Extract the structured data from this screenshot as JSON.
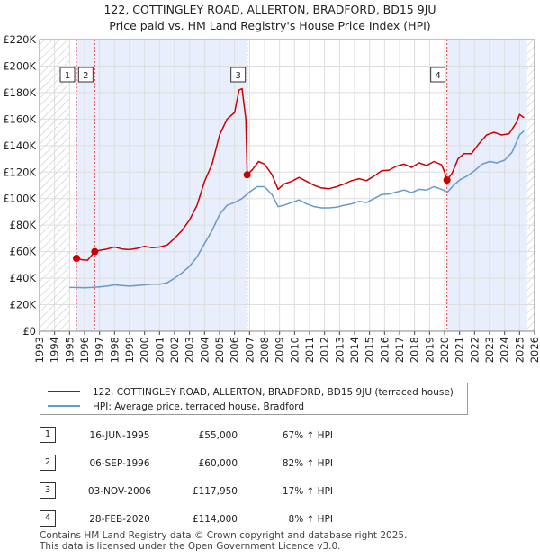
{
  "header": {
    "title_line1": "122, COTTINGLEY ROAD, ALLERTON, BRADFORD, BD15 9JU",
    "title_line2": "Price paid vs. HM Land Registry's House Price Index (HPI)"
  },
  "chart_data": {
    "type": "line",
    "title": "122, COTTINGLEY ROAD, ALLERTON, BRADFORD, BD15 9JU — Price paid vs. HM Land Registry's House Price Index (HPI)",
    "xlabel": "",
    "ylabel": "",
    "xlim": [
      1993,
      2026
    ],
    "ylim": [
      0,
      220000
    ],
    "x_ticks": [
      1993,
      1994,
      1995,
      1996,
      1997,
      1998,
      1999,
      2000,
      2001,
      2002,
      2003,
      2004,
      2005,
      2006,
      2007,
      2008,
      2009,
      2010,
      2011,
      2012,
      2013,
      2014,
      2015,
      2016,
      2017,
      2018,
      2019,
      2020,
      2021,
      2022,
      2023,
      2024,
      2025,
      2026
    ],
    "y_ticks": [
      0,
      20000,
      40000,
      60000,
      80000,
      100000,
      120000,
      140000,
      160000,
      180000,
      200000,
      220000
    ],
    "y_tick_labels": [
      "£0",
      "£20K",
      "£40K",
      "£60K",
      "£80K",
      "£100K",
      "£120K",
      "£140K",
      "£160K",
      "£180K",
      "£200K",
      "£220K"
    ],
    "grid": true,
    "shaded_ranges": [
      [
        1995.46,
        2006.84
      ],
      [
        2020.16,
        2025.5
      ]
    ],
    "hatched_ranges": [
      [
        1993,
        1995
      ],
      [
        2025.5,
        2026
      ]
    ],
    "series": [
      {
        "name": "122, COTTINGLEY ROAD, ALLERTON, BRADFORD, BD15 9JU (terraced house)",
        "color": "#cc0000",
        "x": [
          1995.46,
          1995.8,
          1996.2,
          1996.68,
          1997.0,
          1997.5,
          1998.0,
          1998.5,
          1999.0,
          1999.5,
          2000.0,
          2000.5,
          2001.0,
          2001.5,
          2002.0,
          2002.5,
          2003.0,
          2003.5,
          2004.0,
          2004.5,
          2005.0,
          2005.5,
          2006.0,
          2006.3,
          2006.5,
          2006.75,
          2006.84,
          2007.2,
          2007.6,
          2008.0,
          2008.5,
          2008.9,
          2009.3,
          2009.8,
          2010.3,
          2010.8,
          2011.3,
          2011.8,
          2012.3,
          2012.8,
          2013.3,
          2013.8,
          2014.3,
          2014.8,
          2015.3,
          2015.8,
          2016.3,
          2016.8,
          2017.3,
          2017.8,
          2018.3,
          2018.8,
          2019.3,
          2019.8,
          2020.0,
          2020.16,
          2020.5,
          2020.9,
          2021.3,
          2021.8,
          2022.3,
          2022.8,
          2023.3,
          2023.8,
          2024.3,
          2024.8,
          2025.0,
          2025.3
        ],
        "values": [
          55000,
          54000,
          53500,
          60000,
          61000,
          62000,
          63500,
          62000,
          61500,
          62500,
          64000,
          63000,
          63500,
          65000,
          70000,
          76000,
          84000,
          95000,
          113000,
          126000,
          148000,
          160000,
          165000,
          182000,
          183000,
          160000,
          117950,
          122000,
          128000,
          126000,
          118000,
          107000,
          111000,
          113000,
          116000,
          113000,
          110000,
          108000,
          107500,
          109000,
          111000,
          113500,
          115000,
          113500,
          117000,
          121000,
          121500,
          124500,
          126000,
          123500,
          127000,
          125000,
          128000,
          125500,
          120000,
          114000,
          119000,
          130000,
          134000,
          134000,
          141500,
          148000,
          150000,
          148000,
          149000,
          157500,
          163500,
          161000
        ]
      },
      {
        "name": "HPI: Average price, terraced house, Bradford",
        "color": "#6699cc",
        "x": [
          1995.0,
          1995.5,
          1996.0,
          1996.5,
          1997.0,
          1997.5,
          1998.0,
          1998.5,
          1999.0,
          1999.5,
          2000.0,
          2000.5,
          2001.0,
          2001.5,
          2002.0,
          2002.5,
          2003.0,
          2003.5,
          2004.0,
          2004.5,
          2005.0,
          2005.5,
          2006.0,
          2006.5,
          2007.0,
          2007.5,
          2008.0,
          2008.5,
          2008.9,
          2009.3,
          2009.8,
          2010.3,
          2010.8,
          2011.3,
          2011.8,
          2012.3,
          2012.8,
          2013.3,
          2013.8,
          2014.3,
          2014.8,
          2015.3,
          2015.8,
          2016.3,
          2016.8,
          2017.3,
          2017.8,
          2018.3,
          2018.8,
          2019.3,
          2019.8,
          2020.2,
          2020.6,
          2021.0,
          2021.5,
          2022.0,
          2022.5,
          2023.0,
          2023.5,
          2024.0,
          2024.5,
          2025.0,
          2025.3
        ],
        "values": [
          33000,
          33000,
          32800,
          33000,
          33500,
          34000,
          35000,
          34500,
          34000,
          34500,
          35000,
          35500,
          35500,
          36500,
          40000,
          44000,
          49000,
          56000,
          66000,
          76000,
          88000,
          95000,
          97000,
          100000,
          105000,
          109000,
          109000,
          103000,
          94000,
          95000,
          97000,
          99000,
          96000,
          94000,
          93000,
          93000,
          93500,
          95000,
          96000,
          98000,
          97000,
          100000,
          103000,
          103500,
          105000,
          106500,
          104500,
          107000,
          106500,
          109000,
          107000,
          105000,
          110000,
          114000,
          117000,
          121000,
          126000,
          128000,
          127000,
          129000,
          135000,
          148000,
          151000
        ]
      }
    ],
    "markers": [
      {
        "label": "1",
        "x": 1995.46,
        "value": 55000
      },
      {
        "label": "2",
        "x": 1996.68,
        "value": 60000
      },
      {
        "label": "3",
        "x": 2006.84,
        "value": 117950
      },
      {
        "label": "4",
        "x": 2020.16,
        "value": 114000
      }
    ]
  },
  "legend": {
    "items": [
      {
        "label": "122, COTTINGLEY ROAD, ALLERTON, BRADFORD, BD15 9JU (terraced house)",
        "color": "#cc0000"
      },
      {
        "label": "HPI: Average price, terraced house, Bradford",
        "color": "#6699cc"
      }
    ]
  },
  "transactions": [
    {
      "num": "1",
      "date": "16-JUN-1995",
      "price": "£55,000",
      "hpi": "67% ↑ HPI"
    },
    {
      "num": "2",
      "date": "06-SEP-1996",
      "price": "£60,000",
      "hpi": "82% ↑ HPI"
    },
    {
      "num": "3",
      "date": "03-NOV-2006",
      "price": "£117,950",
      "hpi": "17% ↑ HPI"
    },
    {
      "num": "4",
      "date": "28-FEB-2020",
      "price": "£114,000",
      "hpi": "8% ↑ HPI"
    }
  ],
  "footer": {
    "line1": "Contains HM Land Registry data © Crown copyright and database right 2025.",
    "line2": "This data is licensed under the Open Government Licence v3.0."
  }
}
